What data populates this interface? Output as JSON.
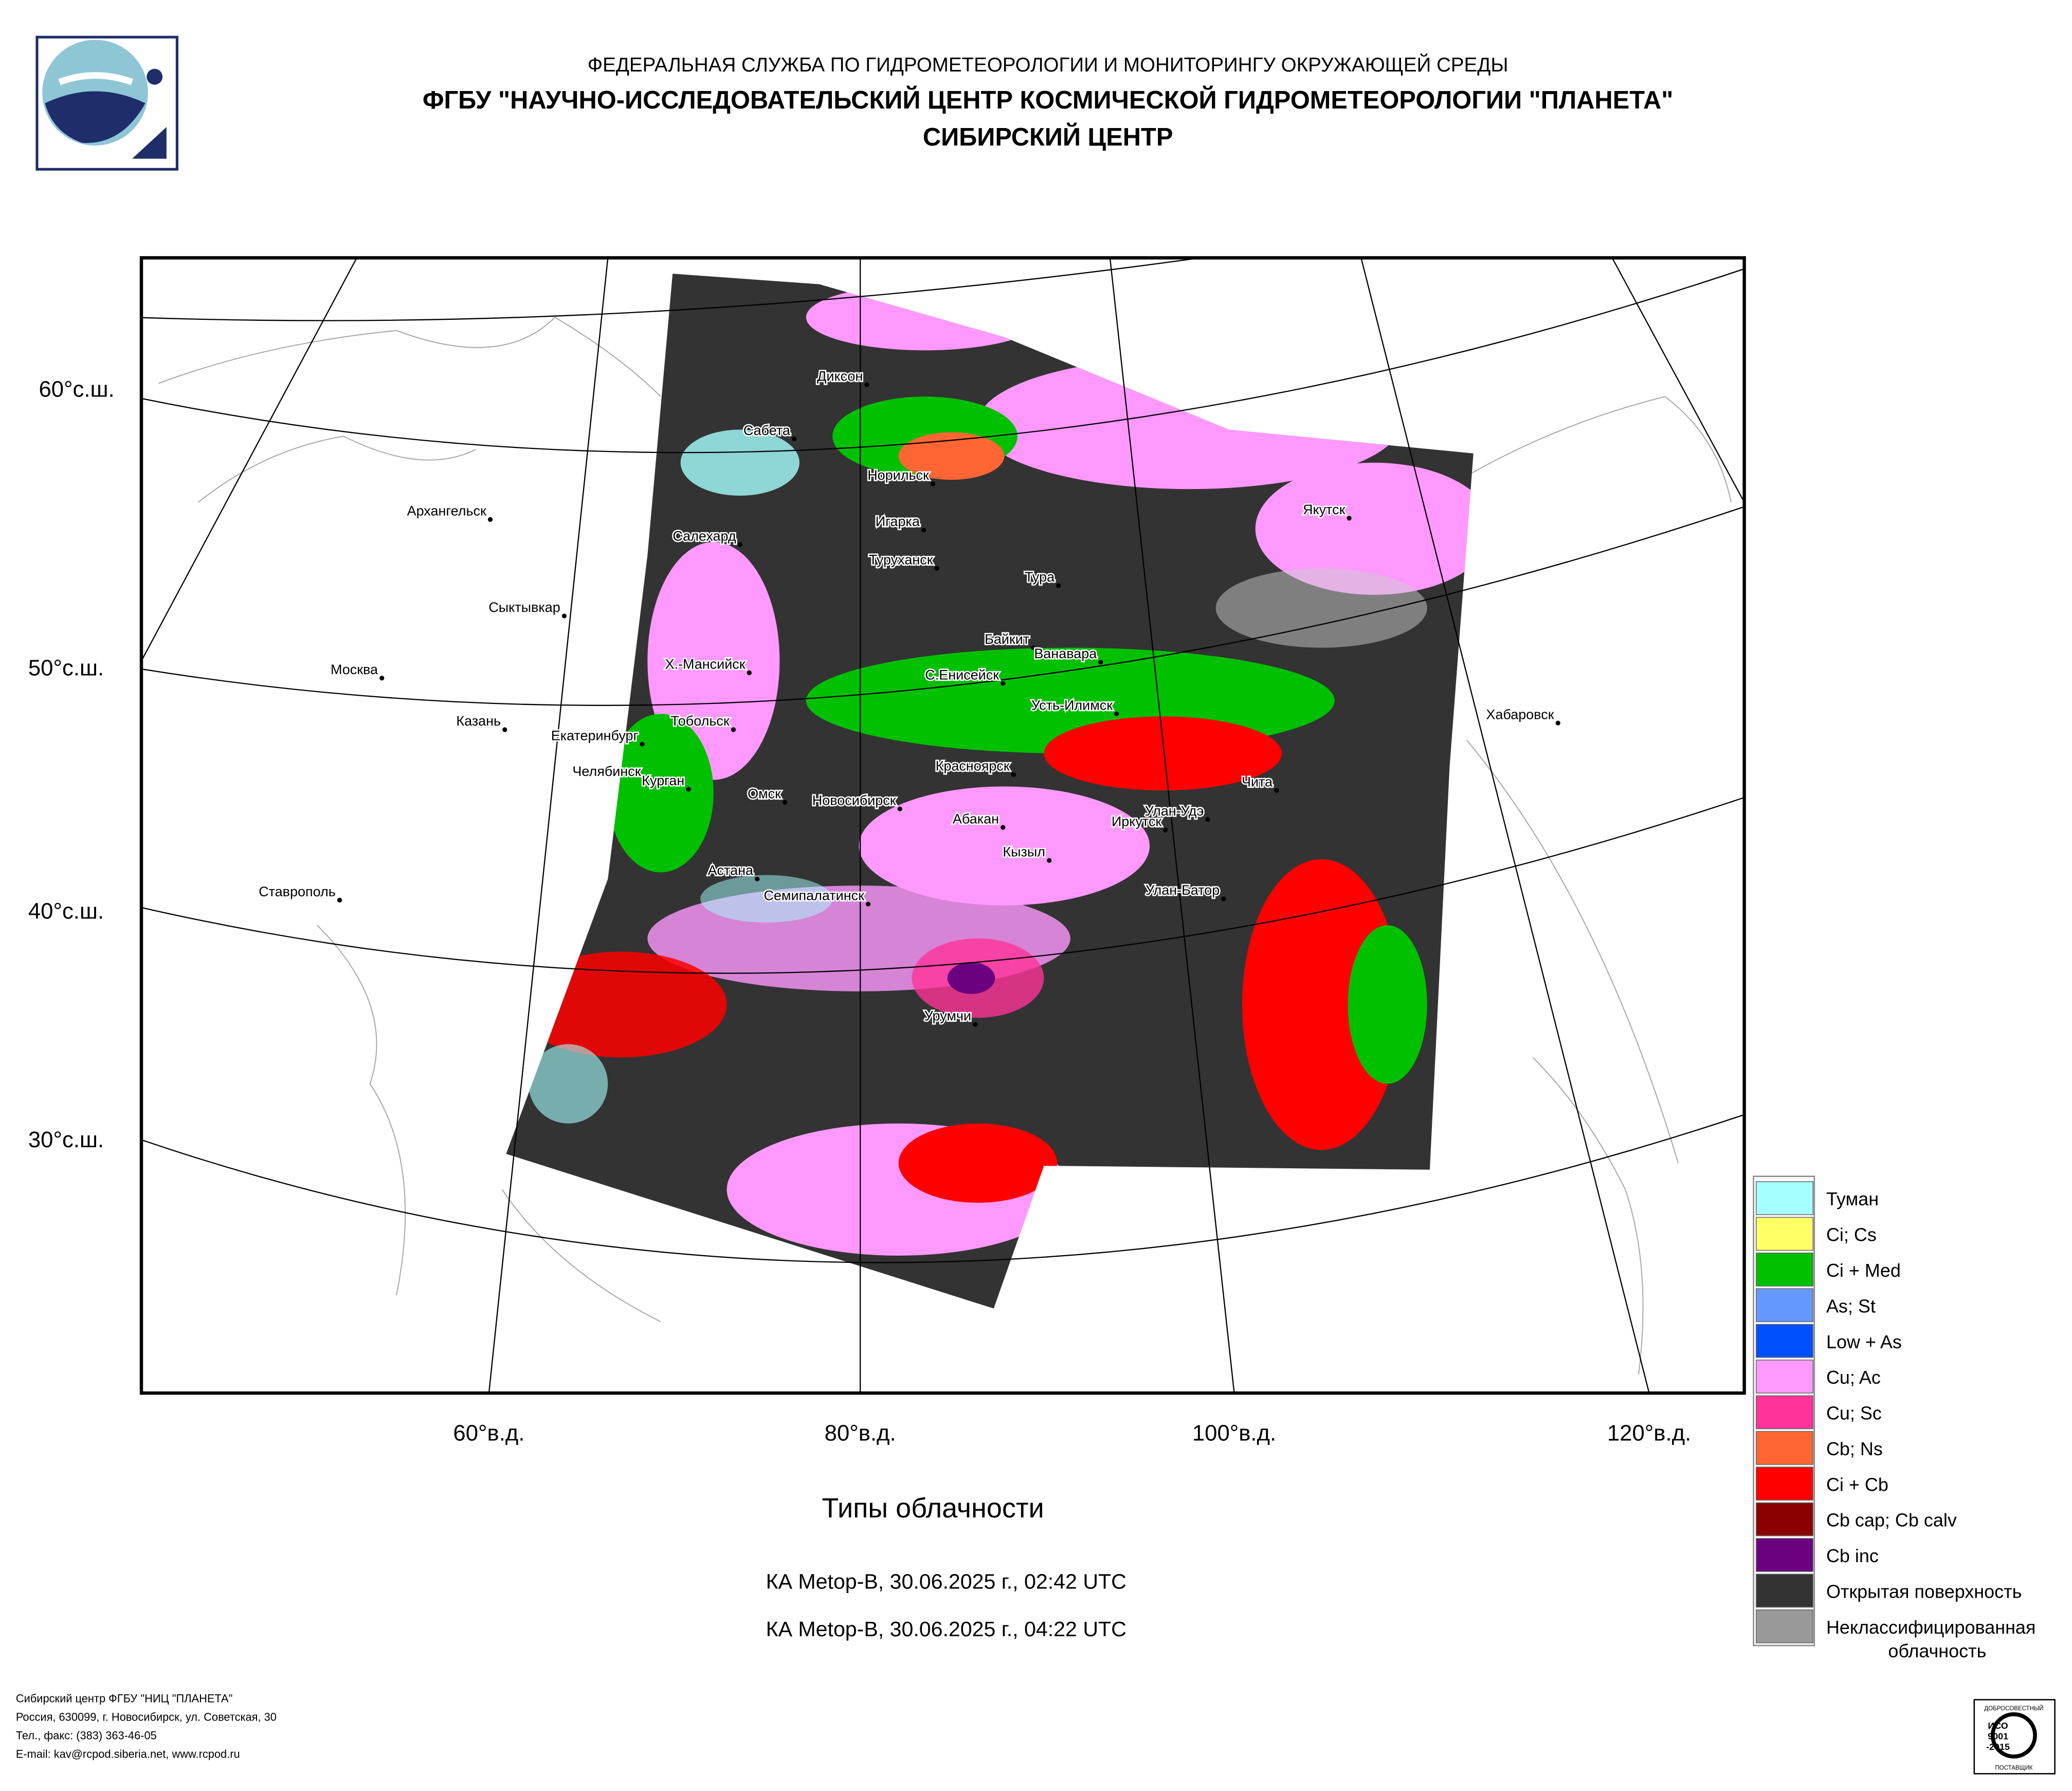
{
  "header": {
    "line1": "ФЕДЕРАЛЬНАЯ СЛУЖБА ПО ГИДРОМЕТЕОРОЛОГИИ И МОНИТОРИНГУ ОКРУЖАЮЩЕЙ СРЕДЫ",
    "line2": "ФГБУ \"НАУЧНО-ИССЛЕДОВАТЕЛЬСКИЙ ЦЕНТР КОСМИЧЕСКОЙ ГИДРОМЕТЕОРОЛОГИИ \"ПЛАНЕТА\"",
    "line3": "СИБИРСКИЙ ЦЕНТР"
  },
  "map": {
    "latitude_labels": [
      "60°с.ш.",
      "50°с.ш.",
      "40°с.ш.",
      "30°с.ш."
    ],
    "longitude_labels": [
      "60°в.д.",
      "80°в.д.",
      "100°в.д.",
      "120°в.д."
    ],
    "cities": [
      "Диксон",
      "Сабета",
      "Норильск",
      "Архангельск",
      "Игарка",
      "Салехард",
      "Туруханск",
      "Тура",
      "Сыктывкар",
      "Якутск",
      "Байкит",
      "Ванавара",
      "Москва",
      "Х.-Мансийск",
      "С.Енисейск",
      "Усть-Илимск",
      "Хабаровск",
      "Казань",
      "Тобольск",
      "Екатеринбург",
      "Красноярск",
      "Челябинск",
      "Чита",
      "Курган",
      "Омск",
      "Новосибирск",
      "Улан-Удэ",
      "Абакан",
      "Иркутск",
      "Кызыл",
      "Астана",
      "Семипалатинск",
      "Улан-Батор",
      "Ставрополь",
      "Урумчи"
    ]
  },
  "title": "Типы облачности",
  "passes": [
    "КА Metop-B, 30.06.2025 г., 02:42 UTC",
    "КА Metop-B, 30.06.2025 г., 04:22 UTC"
  ],
  "legend": [
    {
      "label": "Туман",
      "color": "#a6ffff"
    },
    {
      "label": "Ci; Cs",
      "color": "#ffff66"
    },
    {
      "label": "Ci + Med",
      "color": "#00c000"
    },
    {
      "label": "As; St",
      "color": "#6699ff"
    },
    {
      "label": "Low + As",
      "color": "#0050ff"
    },
    {
      "label": "Cu; Ac",
      "color": "#ff99ff"
    },
    {
      "label": "Cu; Sc",
      "color": "#ff3399"
    },
    {
      "label": "Cb; Ns",
      "color": "#ff6633"
    },
    {
      "label": "Ci + Cb",
      "color": "#ff0000"
    },
    {
      "label": "Cb cap; Cb calv",
      "color": "#8b0000"
    },
    {
      "label": "Cb inc",
      "color": "#6b0080"
    },
    {
      "label": "Открытая поверхность",
      "color": "#333333"
    },
    {
      "label": [
        "Неклассифицированная",
        "облачность"
      ],
      "color": "#999999"
    }
  ],
  "footer": [
    "Сибирский центр ФГБУ \"НИЦ \"ПЛАНЕТА\"",
    "Россия, 630099, г. Новосибирск, ул. Советская, 30",
    "Тел., факс: (383) 363-46-05",
    "E-mail: kav@rcpod.siberia.net, www.rcpod.ru"
  ],
  "iso_badge": {
    "top": "ДОБРОСОВЕСТНЫЙ",
    "line1": "ИСО",
    "line2": "9001",
    "line3": "-2015",
    "bottom": "ПОСТАВЩИК"
  }
}
